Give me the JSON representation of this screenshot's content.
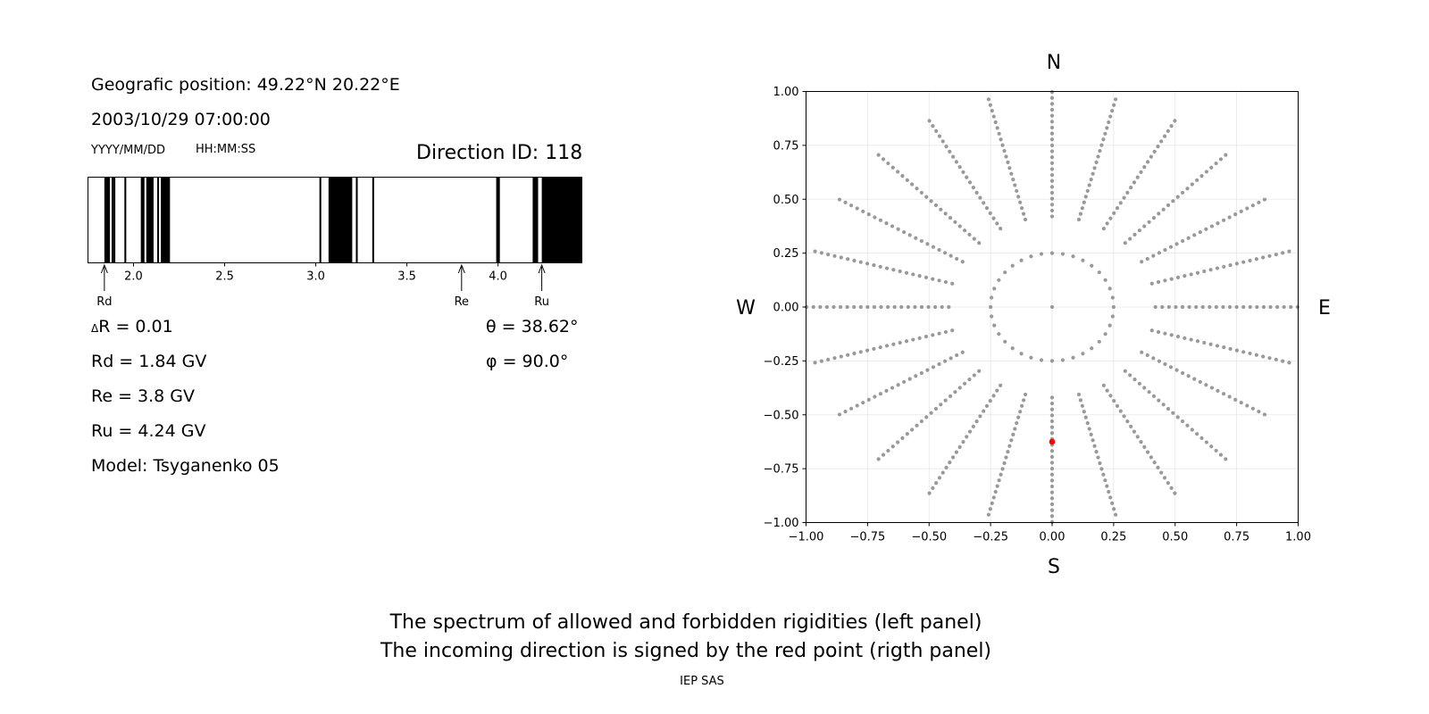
{
  "header": {
    "position": "Geografic position: 49.22°N 20.22°E",
    "datetime": "2003/10/29 07:00:00",
    "date_format": "YYYY/MM/DD",
    "time_format": "HH:MM:SS",
    "direction_id": "Direction ID: 118"
  },
  "params": {
    "delta_r": "R = 0.01",
    "delta_symbol": "Δ",
    "rd": "Rd = 1.84 GV",
    "re": "Re = 3.8 GV",
    "ru": "Ru = 4.24 GV",
    "model": "Model: Tsyganenko 05",
    "theta": "θ = 38.62°",
    "phi": "φ = 90.0°"
  },
  "compass": {
    "north": "N",
    "south": "S",
    "west": "W",
    "east": "E"
  },
  "footer": {
    "line1": "The spectrum of allowed and forbidden rigidities (left panel)",
    "line2": "The incoming direction is signed by the red point (rigth panel)",
    "credit": "IEP SAS"
  },
  "colors": {
    "forbidden": "#000000",
    "grid_points": "#999999",
    "direction_point": "#ff0000"
  },
  "chart_data": [
    {
      "type": "bar",
      "name": "rigidity-spectrum",
      "xlim": [
        1.75,
        4.46
      ],
      "xticks": [
        "2.0",
        "2.5",
        "3.0",
        "3.5",
        "4.0"
      ],
      "xtick_values": [
        2.0,
        2.5,
        3.0,
        3.5,
        4.0
      ],
      "forbidden_intervals": [
        [
          1.84,
          1.87
        ],
        [
          1.88,
          1.89
        ],
        [
          1.89,
          1.9
        ],
        [
          1.95,
          1.96
        ],
        [
          2.04,
          2.06
        ],
        [
          2.07,
          2.11
        ],
        [
          2.13,
          2.14
        ],
        [
          2.15,
          2.2
        ],
        [
          3.02,
          3.03
        ],
        [
          3.07,
          3.2
        ],
        [
          3.22,
          3.23
        ],
        [
          3.31,
          3.32
        ],
        [
          3.99,
          4.01
        ],
        [
          4.19,
          4.22
        ],
        [
          4.24,
          4.46
        ]
      ],
      "markers": [
        {
          "label": "Rd",
          "value": 1.84
        },
        {
          "label": "Re",
          "value": 3.8
        },
        {
          "label": "Ru",
          "value": 4.24
        }
      ]
    },
    {
      "type": "scatter",
      "name": "direction-map",
      "xlim": [
        -1.0,
        1.0
      ],
      "ylim": [
        -1.0,
        1.0
      ],
      "xticks": [
        "−1.00",
        "−0.75",
        "−0.50",
        "−0.25",
        "0.00",
        "0.25",
        "0.50",
        "0.75",
        "1.00"
      ],
      "yticks": [
        "1.00",
        "0.75",
        "0.50",
        "0.25",
        "0.00",
        "−0.25",
        "−0.50",
        "−0.75",
        "−1.00"
      ],
      "tick_values": [
        -1.0,
        -0.75,
        -0.5,
        -0.25,
        0.0,
        0.25,
        0.5,
        0.75,
        1.0
      ],
      "grid": true,
      "grid_pattern": {
        "inner_circle_radius": 0.25,
        "spokes": 24,
        "radius_max": 1.0,
        "radius_step": 0.0275
      },
      "highlight": {
        "x": 0.0,
        "y": -0.625
      }
    }
  ]
}
